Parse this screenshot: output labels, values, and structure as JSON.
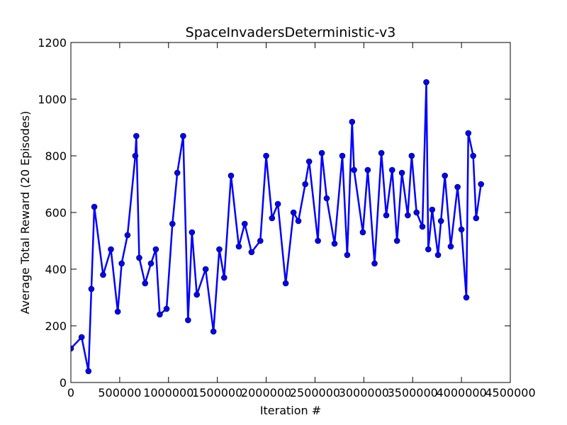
{
  "chart_data": {
    "type": "line",
    "title": "SpaceInvadersDeterministic-v3",
    "xlabel": "Iteration #",
    "ylabel": "Average Total Reward (20 Episodes)",
    "xlim": [
      0,
      4500000
    ],
    "ylim": [
      0,
      1200
    ],
    "xticks": [
      0,
      500000,
      1000000,
      1500000,
      2000000,
      2500000,
      3000000,
      3500000,
      4000000,
      4500000
    ],
    "xtick_labels": [
      "0",
      "500000",
      "1000000",
      "1500000",
      "2000000",
      "2500000",
      "3000000",
      "3500000",
      "4000000",
      "4500000"
    ],
    "yticks": [
      0,
      200,
      400,
      600,
      800,
      1000,
      1200
    ],
    "ytick_labels": [
      "0",
      "200",
      "400",
      "600",
      "800",
      "1000",
      "1200"
    ],
    "grid": false,
    "line_color": "#0000ff",
    "series": [
      {
        "name": "",
        "x": [
          0,
          110000,
          180000,
          210000,
          240000,
          330000,
          410000,
          480000,
          520000,
          580000,
          660000,
          670000,
          700000,
          760000,
          820000,
          870000,
          910000,
          980000,
          1040000,
          1090000,
          1150000,
          1200000,
          1240000,
          1290000,
          1380000,
          1460000,
          1520000,
          1570000,
          1640000,
          1720000,
          1780000,
          1850000,
          1940000,
          2000000,
          2060000,
          2120000,
          2200000,
          2280000,
          2330000,
          2400000,
          2440000,
          2530000,
          2570000,
          2620000,
          2700000,
          2780000,
          2830000,
          2880000,
          2900000,
          2990000,
          3040000,
          3110000,
          3180000,
          3230000,
          3290000,
          3340000,
          3390000,
          3450000,
          3490000,
          3540000,
          3600000,
          3640000,
          3660000,
          3700000,
          3760000,
          3790000,
          3830000,
          3890000,
          3960000,
          4000000,
          4050000,
          4070000,
          4120000,
          4150000,
          4200000
        ],
        "y": [
          120,
          160,
          40,
          330,
          620,
          380,
          470,
          250,
          420,
          520,
          800,
          870,
          440,
          350,
          420,
          470,
          240,
          260,
          560,
          740,
          870,
          220,
          530,
          310,
          400,
          180,
          470,
          370,
          730,
          480,
          560,
          460,
          500,
          800,
          580,
          630,
          350,
          600,
          570,
          700,
          780,
          500,
          810,
          650,
          490,
          800,
          450,
          920,
          750,
          530,
          750,
          420,
          810,
          590,
          750,
          500,
          740,
          590,
          800,
          600,
          550,
          1060,
          470,
          610,
          450,
          570,
          730,
          480,
          690,
          540,
          300,
          880,
          800,
          580,
          700
        ]
      }
    ]
  }
}
